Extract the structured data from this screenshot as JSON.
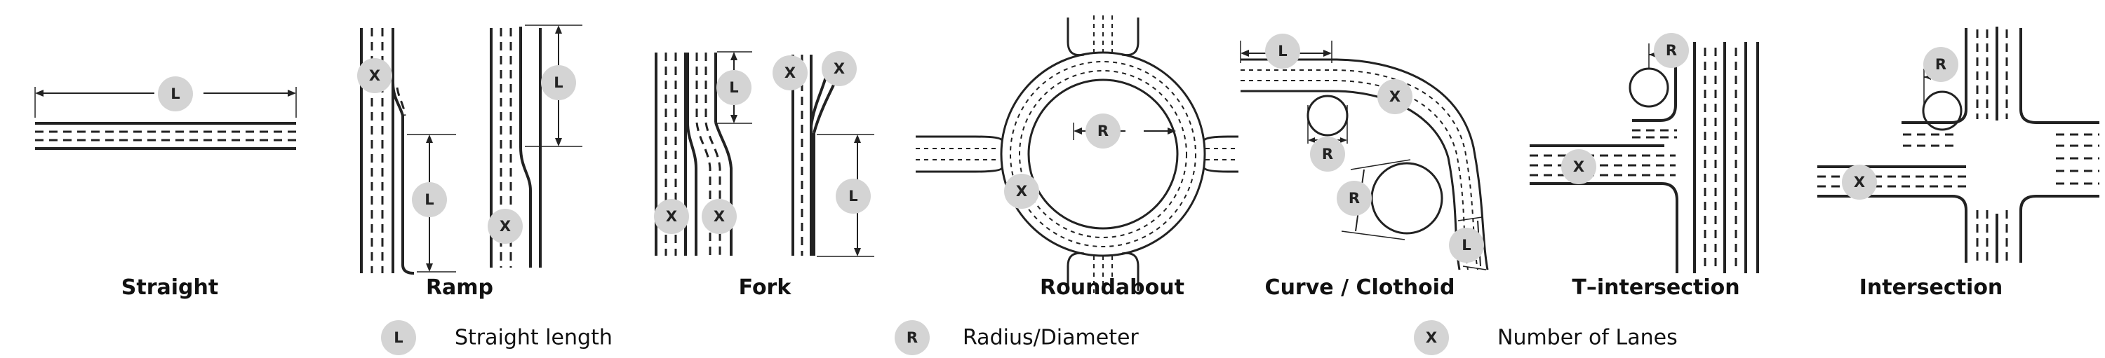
{
  "panels": {
    "straight": {
      "caption": "Straight",
      "badges": [
        "L"
      ]
    },
    "ramp": {
      "caption": "Ramp",
      "badges": [
        "X",
        "L",
        "L",
        "X"
      ]
    },
    "fork": {
      "caption": "Fork",
      "badges": [
        "L",
        "X",
        "X",
        "X",
        "X",
        "L"
      ]
    },
    "roundabout": {
      "caption": "Roundabout",
      "badges": [
        "R",
        "X"
      ]
    },
    "curve": {
      "caption": "Curve / Clothoid",
      "badges": [
        "L",
        "X",
        "R",
        "R",
        "L"
      ]
    },
    "t_intersection": {
      "caption": "T–intersection",
      "badges": [
        "R",
        "X"
      ]
    },
    "intersection": {
      "caption": "Intersection",
      "badges": [
        "R",
        "X"
      ]
    }
  },
  "legend": [
    {
      "symbol": "L",
      "label": "Straight length"
    },
    {
      "symbol": "R",
      "label": "Radius/Diameter"
    },
    {
      "symbol": "X",
      "label": "Number of Lanes"
    }
  ]
}
